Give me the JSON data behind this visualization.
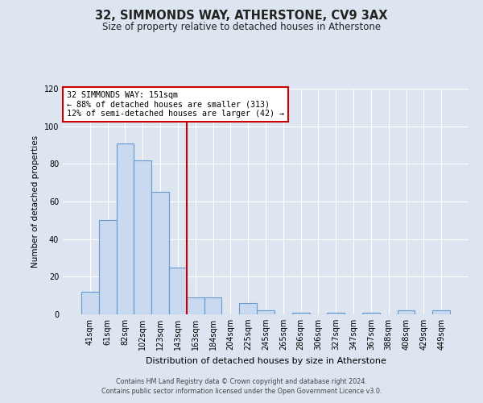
{
  "title": "32, SIMMONDS WAY, ATHERSTONE, CV9 3AX",
  "subtitle": "Size of property relative to detached houses in Atherstone",
  "xlabel": "Distribution of detached houses by size in Atherstone",
  "ylabel": "Number of detached properties",
  "bar_labels": [
    "41sqm",
    "61sqm",
    "82sqm",
    "102sqm",
    "123sqm",
    "143sqm",
    "163sqm",
    "184sqm",
    "204sqm",
    "225sqm",
    "245sqm",
    "265sqm",
    "286sqm",
    "306sqm",
    "327sqm",
    "347sqm",
    "367sqm",
    "388sqm",
    "408sqm",
    "429sqm",
    "449sqm"
  ],
  "bar_values": [
    12,
    50,
    91,
    82,
    65,
    25,
    9,
    9,
    0,
    6,
    2,
    0,
    1,
    0,
    1,
    0,
    1,
    0,
    2,
    0,
    2
  ],
  "bar_color": "#c8d9f0",
  "bar_edge_color": "#6699cc",
  "vline_x": 5.5,
  "vline_color": "#cc0000",
  "annotation_title": "32 SIMMONDS WAY: 151sqm",
  "annotation_line1": "← 88% of detached houses are smaller (313)",
  "annotation_line2": "12% of semi-detached houses are larger (42) →",
  "annotation_box_color": "#cc0000",
  "ylim": [
    0,
    120
  ],
  "yticks": [
    0,
    20,
    40,
    60,
    80,
    100,
    120
  ],
  "background_color": "#dde5f0",
  "grid_color": "#ffffff",
  "footer1": "Contains HM Land Registry data © Crown copyright and database right 2024.",
  "footer2": "Contains public sector information licensed under the Open Government Licence v3.0."
}
